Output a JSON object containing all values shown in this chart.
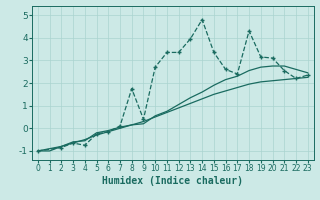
{
  "xlabel": "Humidex (Indice chaleur)",
  "bg_color": "#cce9e6",
  "line_color": "#1a6b60",
  "grid_color": "#aad4d0",
  "xlim": [
    -0.5,
    23.5
  ],
  "ylim": [
    -1.4,
    5.4
  ],
  "yticks": [
    -1,
    0,
    1,
    2,
    3,
    4,
    5
  ],
  "xticks": [
    0,
    1,
    2,
    3,
    4,
    5,
    6,
    7,
    8,
    9,
    10,
    11,
    12,
    13,
    14,
    15,
    16,
    17,
    18,
    19,
    20,
    21,
    22,
    23
  ],
  "series": [
    {
      "x": [
        0,
        1,
        2,
        3,
        4,
        5,
        6,
        7,
        8,
        9,
        10,
        11,
        12,
        13,
        14,
        15,
        16,
        17,
        18,
        19,
        20,
        21,
        22,
        23
      ],
      "y": [
        -1.0,
        -1.0,
        -0.8,
        -0.65,
        -0.5,
        -0.3,
        -0.15,
        0.0,
        0.15,
        0.3,
        0.5,
        0.7,
        0.9,
        1.1,
        1.3,
        1.5,
        1.65,
        1.8,
        1.95,
        2.05,
        2.1,
        2.15,
        2.2,
        2.25
      ],
      "marker": null,
      "linestyle": "-",
      "linewidth": 0.9
    },
    {
      "x": [
        0,
        2,
        3,
        4,
        5,
        6,
        7,
        8,
        9,
        10,
        11,
        12,
        13,
        14,
        15,
        16,
        17,
        18,
        19,
        20,
        21,
        22,
        23
      ],
      "y": [
        -1.0,
        -0.8,
        -0.6,
        -0.55,
        -0.2,
        -0.1,
        0.05,
        0.15,
        0.2,
        0.55,
        0.75,
        1.05,
        1.35,
        1.6,
        1.9,
        2.15,
        2.3,
        2.55,
        2.7,
        2.75,
        2.75,
        2.6,
        2.45
      ],
      "marker": null,
      "linestyle": "-",
      "linewidth": 0.9
    },
    {
      "x": [
        0,
        2,
        3,
        4,
        5,
        6,
        7,
        8,
        9,
        10,
        11,
        12,
        13,
        14,
        15,
        16,
        17,
        18,
        19,
        20,
        21,
        22,
        23
      ],
      "y": [
        -1.0,
        -0.85,
        -0.65,
        -0.75,
        -0.25,
        -0.15,
        0.1,
        1.75,
        0.4,
        2.7,
        3.35,
        3.35,
        3.95,
        4.8,
        3.35,
        2.6,
        2.4,
        4.3,
        3.15,
        3.1,
        2.55,
        2.2,
        2.35
      ],
      "marker": "+",
      "linestyle": "--",
      "linewidth": 0.9
    }
  ]
}
